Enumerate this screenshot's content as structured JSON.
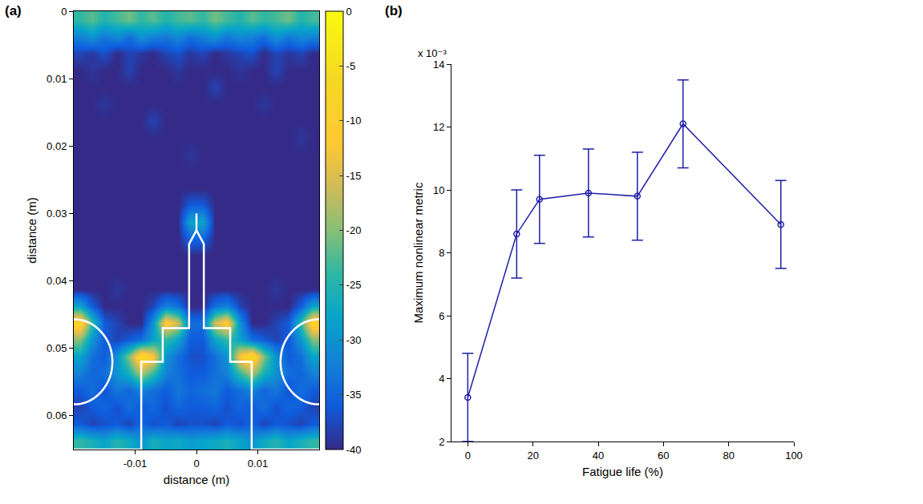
{
  "chart_data": [
    {
      "type": "heatmap",
      "panel_label": "(a)",
      "xlabel": "distance (m)",
      "ylabel": "distance (m)",
      "grid": false,
      "x": [
        -0.019,
        -0.017,
        -0.015,
        -0.013,
        -0.011,
        -0.009,
        -0.007,
        -0.005,
        -0.003,
        -0.001,
        0.001,
        0.003,
        0.005,
        0.007,
        0.009,
        0.011,
        0.013,
        0.015,
        0.017,
        0.019
      ],
      "y": [
        0.00125,
        0.00375,
        0.00625,
        0.00875,
        0.01125,
        0.01375,
        0.01625,
        0.01875,
        0.02125,
        0.02375,
        0.02625,
        0.02875,
        0.03125,
        0.03375,
        0.03625,
        0.03875,
        0.04125,
        0.04375,
        0.04625,
        0.04875,
        0.05125,
        0.05375,
        0.05625,
        0.05875,
        0.06125,
        0.06375
      ],
      "cells": [
        [
          -24,
          -22,
          -25,
          -23,
          -21,
          -24,
          -22,
          -25,
          -23,
          -22,
          -24,
          -21,
          -23,
          -25,
          -22,
          -24,
          -23,
          -21,
          -25,
          -23
        ],
        [
          -32,
          -30,
          -33,
          -31,
          -34,
          -30,
          -32,
          -33,
          -31,
          -34,
          -32,
          -30,
          -33,
          -31,
          -32,
          -34,
          -30,
          -33,
          -31,
          -32
        ],
        [
          -38,
          -39,
          -37,
          -40,
          -38,
          -39,
          -40,
          -38,
          -37,
          -39,
          -38,
          -40,
          -39,
          -38,
          -37,
          -40,
          -38,
          -39,
          -38,
          -40
        ],
        [
          -40,
          -39,
          -40,
          -40,
          -38,
          -40,
          -40,
          -40,
          -39,
          -40,
          -40,
          -40,
          -40,
          -39,
          -40,
          -40,
          -38,
          -40,
          -40,
          -40
        ],
        [
          -40,
          -40,
          -40,
          -40,
          -40,
          -40,
          -40,
          -40,
          -40,
          -40,
          -40,
          -38,
          -40,
          -40,
          -40,
          -40,
          -40,
          -40,
          -40,
          -40
        ],
        [
          -40,
          -40,
          -39,
          -40,
          -40,
          -40,
          -40,
          -40,
          -40,
          -40,
          -40,
          -40,
          -40,
          -40,
          -40,
          -39,
          -40,
          -40,
          -40,
          -40
        ],
        [
          -40,
          -40,
          -40,
          -40,
          -40,
          -40,
          -38,
          -40,
          -40,
          -40,
          -40,
          -40,
          -40,
          -40,
          -40,
          -40,
          -40,
          -40,
          -40,
          -40
        ],
        [
          -40,
          -40,
          -40,
          -40,
          -40,
          -40,
          -40,
          -40,
          -40,
          -40,
          -40,
          -40,
          -40,
          -40,
          -40,
          -40,
          -40,
          -40,
          -39,
          -40
        ],
        [
          -40,
          -40,
          -40,
          -40,
          -40,
          -40,
          -40,
          -40,
          -40,
          -39,
          -40,
          -40,
          -40,
          -40,
          -40,
          -40,
          -40,
          -40,
          -40,
          -40
        ],
        [
          -40,
          -40,
          -40,
          -40,
          -40,
          -40,
          -40,
          -40,
          -40,
          -40,
          -40,
          -40,
          -40,
          -40,
          -40,
          -40,
          -40,
          -40,
          -40,
          -40
        ],
        [
          -40,
          -40,
          -40,
          -40,
          -40,
          -40,
          -40,
          -40,
          -40,
          -40,
          -40,
          -40,
          -40,
          -40,
          -40,
          -40,
          -40,
          -40,
          -40,
          -40
        ],
        [
          -40,
          -40,
          -40,
          -40,
          -40,
          -40,
          -40,
          -40,
          -40,
          -36,
          -36,
          -40,
          -40,
          -40,
          -40,
          -40,
          -40,
          -40,
          -40,
          -40
        ],
        [
          -40,
          -40,
          -40,
          -40,
          -40,
          -40,
          -40,
          -40,
          -40,
          -28,
          -28,
          -40,
          -40,
          -40,
          -40,
          -40,
          -40,
          -40,
          -40,
          -40
        ],
        [
          -40,
          -40,
          -40,
          -40,
          -40,
          -40,
          -40,
          -40,
          -40,
          -35,
          -35,
          -40,
          -40,
          -40,
          -40,
          -40,
          -40,
          -40,
          -40,
          -40
        ],
        [
          -40,
          -40,
          -40,
          -40,
          -40,
          -40,
          -40,
          -40,
          -40,
          -40,
          -40,
          -40,
          -40,
          -40,
          -40,
          -40,
          -40,
          -40,
          -40,
          -40
        ],
        [
          -40,
          -40,
          -40,
          -40,
          -40,
          -40,
          -40,
          -40,
          -40,
          -40,
          -40,
          -40,
          -40,
          -40,
          -40,
          -40,
          -40,
          -40,
          -40,
          -40
        ],
        [
          -40,
          -40,
          -40,
          -39,
          -40,
          -40,
          -40,
          -40,
          -40,
          -40,
          -40,
          -40,
          -40,
          -40,
          -40,
          -40,
          -39,
          -40,
          -40,
          -40
        ],
        [
          -28,
          -36,
          -40,
          -40,
          -40,
          -40,
          -38,
          -32,
          -34,
          -40,
          -40,
          -34,
          -32,
          -38,
          -40,
          -40,
          -40,
          -40,
          -36,
          -28
        ],
        [
          -8,
          -24,
          -36,
          -38,
          -40,
          -40,
          -30,
          -10,
          -16,
          -34,
          -34,
          -16,
          -10,
          -30,
          -40,
          -40,
          -38,
          -36,
          -24,
          -8
        ],
        [
          -20,
          -30,
          -36,
          -38,
          -36,
          -34,
          -28,
          -24,
          -28,
          -36,
          -36,
          -28,
          -24,
          -28,
          -34,
          -36,
          -38,
          -36,
          -30,
          -20
        ],
        [
          -28,
          -34,
          -36,
          -30,
          -20,
          -6,
          -12,
          -30,
          -34,
          -37,
          -37,
          -34,
          -30,
          -12,
          -6,
          -20,
          -30,
          -36,
          -34,
          -28
        ],
        [
          -32,
          -35,
          -34,
          -30,
          -26,
          -18,
          -24,
          -32,
          -34,
          -36,
          -36,
          -34,
          -32,
          -24,
          -18,
          -26,
          -30,
          -34,
          -35,
          -32
        ],
        [
          -36,
          -34,
          -37,
          -33,
          -35,
          -32,
          -34,
          -36,
          -33,
          -35,
          -34,
          -33,
          -36,
          -34,
          -32,
          -35,
          -33,
          -37,
          -34,
          -36
        ],
        [
          -38,
          -36,
          -35,
          -37,
          -34,
          -36,
          -35,
          -37,
          -35,
          -36,
          -36,
          -35,
          -37,
          -35,
          -36,
          -34,
          -37,
          -35,
          -36,
          -38
        ],
        [
          -36,
          -38,
          -37,
          -36,
          -38,
          -35,
          -37,
          -36,
          -38,
          -37,
          -37,
          -38,
          -36,
          -37,
          -35,
          -38,
          -36,
          -37,
          -38,
          -36
        ],
        [
          -24,
          -26,
          -28,
          -25,
          -27,
          -30,
          -26,
          -28,
          -27,
          -29,
          -28,
          -27,
          -26,
          -28,
          -30,
          -27,
          -25,
          -28,
          -26,
          -24
        ]
      ],
      "xlim": [
        -0.02,
        0.02
      ],
      "xticks": [
        -0.01,
        0,
        0.01
      ],
      "ylim": [
        0.065,
        0
      ],
      "yticks": [
        0,
        0.01,
        0.02,
        0.03,
        0.04,
        0.05,
        0.06
      ],
      "clim": [
        -40,
        0
      ],
      "cticks": [
        0,
        -5,
        -10,
        -15,
        -20,
        -25,
        -30,
        -35,
        -40
      ],
      "overlays": [
        {
          "type": "line",
          "color": "#ffffff",
          "x": [
            -0.02,
            -0.009,
            -0.009,
            -0.0055,
            -0.0055,
            -0.0012,
            -0.0012,
            0,
            0.0012,
            0.0012,
            0.0055,
            0.0055,
            0.009,
            0.009,
            0.02
          ],
          "y": [
            0.065,
            0.065,
            0.052,
            0.052,
            0.047,
            0.047,
            0.0345,
            0.0325,
            0.0345,
            0.047,
            0.047,
            0.052,
            0.052,
            0.065,
            0.065
          ]
        },
        {
          "type": "line",
          "color": "#ffffff",
          "x": [
            0,
            0
          ],
          "y": [
            0.0325,
            0.03
          ]
        },
        {
          "type": "circle",
          "color": "#ffffff",
          "x": -0.02,
          "y": 0.052,
          "r": 0.0063
        },
        {
          "type": "circle",
          "color": "#ffffff",
          "x": 0.02,
          "y": 0.052,
          "r": 0.0063
        }
      ]
    },
    {
      "type": "line",
      "panel_label": "(b)",
      "xlabel": "Fatigue life (%)",
      "ylabel": "Maximum nonlinear metric",
      "grid": false,
      "annotations": [
        "x 10⁻³"
      ],
      "color": "#1f1fa8",
      "marker": "circle-open",
      "line_style": "solid",
      "x": [
        0,
        15,
        22,
        37,
        52,
        66,
        96
      ],
      "values": [
        0.0034,
        0.0086,
        0.0097,
        0.0099,
        0.0098,
        0.0121,
        0.0089
      ],
      "error": [
        0.0014,
        0.0014,
        0.0014,
        0.0014,
        0.0014,
        0.0014,
        0.0014
      ],
      "xlim": [
        -5,
        100
      ],
      "xticks": [
        0,
        20,
        40,
        60,
        80,
        100
      ],
      "ylim": [
        0.002,
        0.014
      ],
      "yticks": [
        {
          "value": 0.002,
          "label": "2"
        },
        {
          "value": 0.004,
          "label": "4"
        },
        {
          "value": 0.006,
          "label": "6"
        },
        {
          "value": 0.008,
          "label": "8"
        },
        {
          "value": 0.01,
          "label": "10"
        },
        {
          "value": 0.012,
          "label": "12"
        },
        {
          "value": 0.014,
          "label": "14"
        }
      ]
    }
  ]
}
